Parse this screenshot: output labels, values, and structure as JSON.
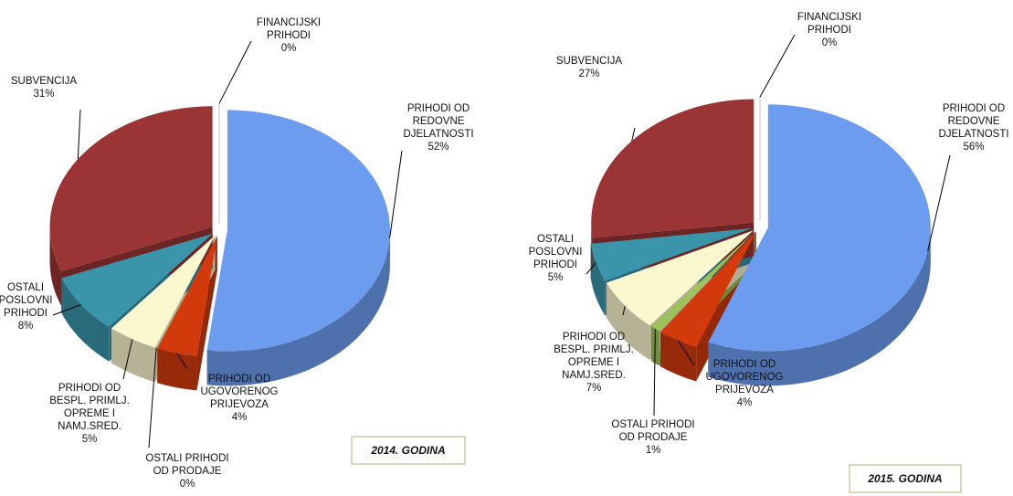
{
  "chart_data": [
    {
      "type": "pie",
      "title": "2014. GODINA",
      "categories": [
        [
          "PRIHODI OD",
          "REDOVNE",
          "DJELATNOSTI"
        ],
        [
          "PRIHODI OD",
          "UGOVORENOG",
          "PRIJEVOZA"
        ],
        [
          "OSTALI PRIHODI",
          "OD PRODAJE"
        ],
        [
          "PRIHODI OD",
          "BESPL. PRIMLJ.",
          "OPREME I",
          "NAMJ.SRED."
        ],
        [
          "OSTALI",
          "POSLOVNI",
          "PRIHODI"
        ],
        [
          "SUBVENCIJA"
        ],
        [
          "FINANCIJSKI",
          "PRIHODI"
        ]
      ],
      "values": [
        52,
        4,
        0,
        5,
        8,
        31,
        0
      ],
      "value_labels": [
        "52%",
        "4%",
        "0%",
        "5%",
        "8%",
        "31%",
        "0%"
      ],
      "colors": [
        "#6c9cf0",
        "#d23a0c",
        "#9bc35a",
        "#fbf7cf",
        "#3a95ab",
        "#9b3434",
        "#ffffff"
      ]
    },
    {
      "type": "pie",
      "title": "2015. GODINA",
      "categories": [
        [
          "PRIHODI OD",
          "REDOVNE",
          "DJELATNOSTI"
        ],
        [
          "PRIHODI OD",
          "UGOVORENOG",
          "PRIJEVOZA"
        ],
        [
          "OSTALI PRIHODI",
          "OD PRODAJE"
        ],
        [
          "PRIHODI OD",
          "BESPL. PRIMLJ.",
          "OPREME I",
          "NAMJ.SRED."
        ],
        [
          "OSTALI",
          "POSLOVNI",
          "PRIHODI"
        ],
        [
          "SUBVENCIJA"
        ],
        [
          "FINANCIJSKI",
          "PRIHODI"
        ]
      ],
      "values": [
        56,
        4,
        1,
        7,
        5,
        27,
        0
      ],
      "value_labels": [
        "56%",
        "4%",
        "1%",
        "7%",
        "5%",
        "27%",
        "0%"
      ],
      "colors": [
        "#6c9cf0",
        "#d23a0c",
        "#9bc35a",
        "#fbf7cf",
        "#3a95ab",
        "#9b3434",
        "#ffffff"
      ]
    }
  ]
}
